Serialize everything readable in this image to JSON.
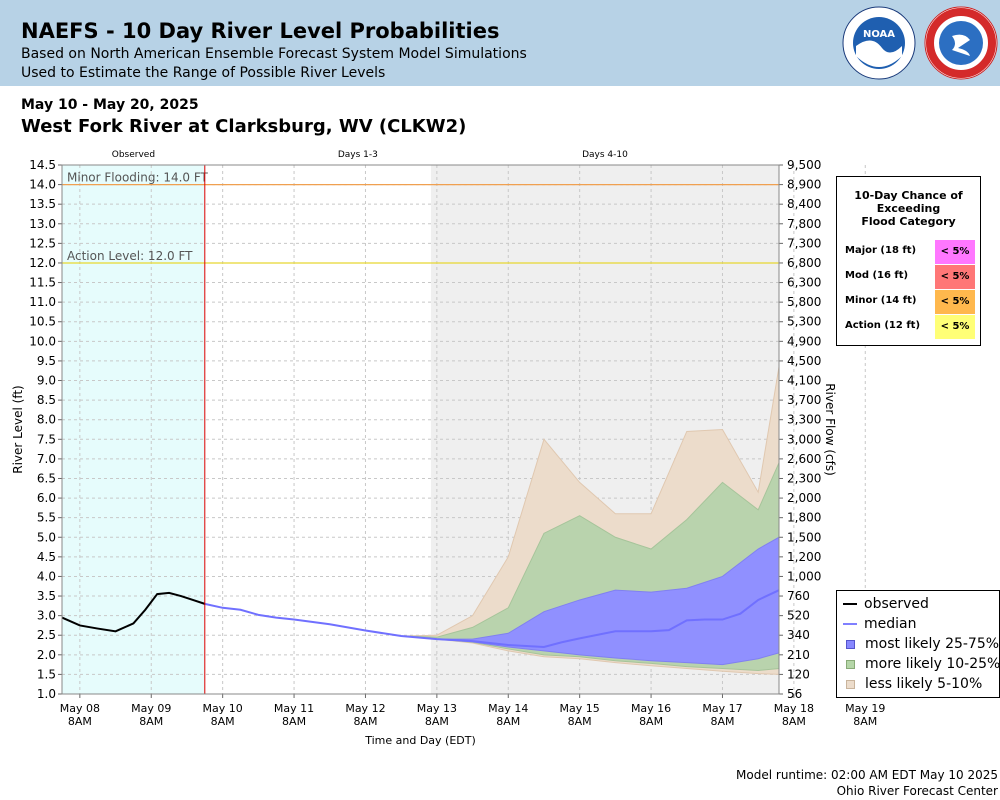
{
  "header": {
    "title": "NAEFS - 10 Day River Level Probabilities",
    "subtitle1": "Based on North American Ensemble Forecast System Model Simulations",
    "subtitle2": "Used to Estimate the Range of Possible River Levels"
  },
  "date_range": "May 10 - May 20, 2025",
  "station": "West Fork River at Clarksburg, WV (CLKW2)",
  "period_labels": [
    "Observed",
    "Days 1-3",
    "Days 4-10"
  ],
  "thresholds": [
    {
      "label": "Minor Flooding: 14.0 FT",
      "stage": 14.0,
      "color": "#f0a050"
    },
    {
      "label": "Action Level: 12.0 FT",
      "stage": 12.0,
      "color": "#e8d830"
    }
  ],
  "prob_table": {
    "title": [
      "10-Day Chance of",
      "Exceeding",
      "Flood Category"
    ],
    "rows": [
      {
        "label": "Major (18 ft)",
        "value": "< 5%",
        "color": "#ff77ff"
      },
      {
        "label": "Mod (16 ft)",
        "value": "< 5%",
        "color": "#ff7777"
      },
      {
        "label": "Minor (14 ft)",
        "value": "< 5%",
        "color": "#ffb84d"
      },
      {
        "label": "Action (12 ft)",
        "value": "< 5%",
        "color": "#ffff77"
      }
    ]
  },
  "legend": [
    {
      "label": "observed",
      "kind": "line",
      "color": "#000000"
    },
    {
      "label": "median",
      "kind": "line",
      "color": "#8080ff"
    },
    {
      "label": "most likely 25-75%",
      "kind": "box",
      "color": "#8888ff"
    },
    {
      "label": "more likely 10-25%",
      "kind": "box",
      "color": "#b5d6a8"
    },
    {
      "label": "less likely 5-10%",
      "kind": "box",
      "color": "#ecdccb"
    }
  ],
  "footer": {
    "runtime": "Model runtime: 02:00 AM EDT May 10 2025",
    "center": "Ohio River Forecast Center"
  },
  "colors": {
    "header_bg": "#b7d2e6",
    "observed_bg": "#e6fcfc",
    "days410_bg": "#efefef",
    "now_line": "#dd0000"
  },
  "chart_data": {
    "type": "area",
    "xlabel": "Time and Day (EDT)",
    "ylabel": "River Level (ft)",
    "y2label": "River Flow (cfs)",
    "ylim": [
      1.0,
      14.5
    ],
    "xlim_hours_from_may08_8am": [
      -6,
      235
    ],
    "y_ticks": [
      "1.0",
      "1.5",
      "2.0",
      "2.5",
      "3.0",
      "3.5",
      "4.0",
      "4.5",
      "5.0",
      "5.5",
      "6.0",
      "6.5",
      "7.0",
      "7.5",
      "8.0",
      "8.5",
      "9.0",
      "9.5",
      "10.0",
      "10.5",
      "11.0",
      "11.5",
      "12.0",
      "12.5",
      "13.0",
      "13.5",
      "14.0",
      "14.5"
    ],
    "y2_ticks": [
      "56",
      "120",
      "210",
      "340",
      "520",
      "760",
      "1,000",
      "1,200",
      "1,500",
      "1,800",
      "2,000",
      "2,300",
      "2,600",
      "3,000",
      "3,300",
      "3,700",
      "4,100",
      "4,500",
      "4,900",
      "5,300",
      "5,800",
      "6,300",
      "6,800",
      "7,300",
      "7,800",
      "8,400",
      "8,900",
      "9,500"
    ],
    "x_ticks": [
      {
        "day": "May 08",
        "time": "8AM"
      },
      {
        "day": "May 09",
        "time": "8AM"
      },
      {
        "day": "May 10",
        "time": "8AM"
      },
      {
        "day": "May 11",
        "time": "8AM"
      },
      {
        "day": "May 12",
        "time": "8AM"
      },
      {
        "day": "May 13",
        "time": "8AM"
      },
      {
        "day": "May 14",
        "time": "8AM"
      },
      {
        "day": "May 15",
        "time": "8AM"
      },
      {
        "day": "May 16",
        "time": "8AM"
      },
      {
        "day": "May 17",
        "time": "8AM"
      },
      {
        "day": "May 18",
        "time": "8AM"
      },
      {
        "day": "May 19",
        "time": "8AM"
      }
    ],
    "periods_hours": {
      "observed_end": 42,
      "days410_start": 118
    },
    "observed": {
      "x": [
        -6,
        0,
        6,
        12,
        18,
        22,
        26,
        30,
        34,
        38,
        42
      ],
      "y": [
        2.95,
        2.75,
        2.67,
        2.6,
        2.8,
        3.15,
        3.55,
        3.58,
        3.5,
        3.4,
        3.3
      ]
    },
    "median": {
      "x": [
        42,
        48,
        54,
        60,
        66,
        72,
        84,
        96,
        108,
        120,
        132,
        144,
        156,
        162,
        168,
        180,
        192,
        198,
        204,
        210,
        216,
        222,
        228,
        235
      ],
      "y": [
        3.3,
        3.2,
        3.15,
        3.02,
        2.95,
        2.9,
        2.78,
        2.62,
        2.48,
        2.4,
        2.35,
        2.25,
        2.2,
        2.32,
        2.42,
        2.6,
        2.6,
        2.63,
        2.88,
        2.9,
        2.9,
        3.05,
        3.4,
        3.65
      ]
    },
    "band_25_75": {
      "x": [
        42,
        48,
        54,
        60,
        66,
        72,
        84,
        96,
        108,
        120,
        132,
        144,
        156,
        168,
        180,
        192,
        204,
        216,
        228,
        235
      ],
      "low": [
        3.3,
        3.2,
        3.15,
        3.02,
        2.95,
        2.9,
        2.78,
        2.62,
        2.48,
        2.4,
        2.33,
        2.2,
        2.1,
        2.0,
        1.92,
        1.85,
        1.8,
        1.75,
        1.9,
        2.05
      ],
      "high": [
        3.3,
        3.2,
        3.15,
        3.02,
        2.95,
        2.9,
        2.78,
        2.62,
        2.48,
        2.4,
        2.4,
        2.55,
        3.1,
        3.4,
        3.65,
        3.6,
        3.7,
        4.0,
        4.7,
        5.0
      ]
    },
    "band_10_25": {
      "x": [
        42,
        48,
        54,
        60,
        66,
        72,
        84,
        96,
        108,
        120,
        132,
        144,
        156,
        168,
        180,
        192,
        204,
        216,
        228,
        235
      ],
      "low": [
        3.3,
        3.2,
        3.15,
        3.02,
        2.95,
        2.9,
        2.78,
        2.62,
        2.48,
        2.4,
        2.32,
        2.15,
        2.0,
        1.95,
        1.85,
        1.78,
        1.7,
        1.65,
        1.6,
        1.65
      ],
      "high": [
        3.3,
        3.2,
        3.15,
        3.02,
        2.95,
        2.9,
        2.78,
        2.62,
        2.48,
        2.45,
        2.7,
        3.2,
        5.1,
        5.55,
        5.0,
        4.7,
        5.45,
        6.4,
        5.7,
        6.9
      ]
    },
    "band_5_10": {
      "x": [
        42,
        48,
        54,
        60,
        66,
        72,
        84,
        96,
        108,
        120,
        132,
        144,
        156,
        168,
        180,
        192,
        204,
        216,
        228,
        235
      ],
      "low": [
        3.3,
        3.2,
        3.15,
        3.02,
        2.95,
        2.9,
        2.78,
        2.62,
        2.48,
        2.4,
        2.3,
        2.1,
        1.95,
        1.9,
        1.8,
        1.72,
        1.65,
        1.58,
        1.52,
        1.5
      ],
      "high": [
        3.3,
        3.2,
        3.15,
        3.02,
        2.95,
        2.9,
        2.78,
        2.62,
        2.48,
        2.5,
        3.0,
        4.5,
        7.5,
        6.4,
        5.6,
        5.6,
        7.7,
        7.75,
        6.15,
        9.35
      ]
    }
  }
}
